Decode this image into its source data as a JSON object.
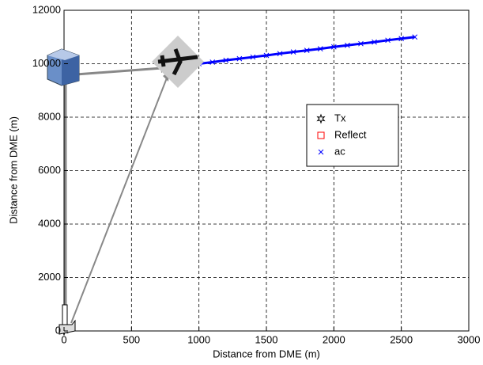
{
  "chart_data": {
    "type": "scatter",
    "xlabel": "Distance from DME (m)",
    "ylabel": "Distance from DME (m)",
    "xlim": [
      0,
      3000
    ],
    "ylim": [
      0,
      12000
    ],
    "xticks": [
      0,
      500,
      1000,
      1500,
      2000,
      2500,
      3000
    ],
    "yticks": [
      0,
      2000,
      4000,
      6000,
      8000,
      10000,
      12000
    ],
    "grid": true,
    "legend": "upper right",
    "series": [
      {
        "name": "Tx",
        "color": "#000000",
        "marker": "hexagram",
        "x": [
          0
        ],
        "y": [
          0
        ]
      },
      {
        "name": "Reflect",
        "color": "#ff0000",
        "marker": "square",
        "x": [
          0
        ],
        "y": [
          9500
        ]
      },
      {
        "name": "ac",
        "color": "#0000ff",
        "marker": "x",
        "x": [
          1000,
          1100,
          1200,
          1300,
          1400,
          1500,
          1600,
          1700,
          1800,
          1900,
          2000,
          2100,
          2200,
          2300,
          2400,
          2500,
          2600
        ],
        "y": [
          10000,
          10060,
          10130,
          10190,
          10250,
          10310,
          10380,
          10440,
          10500,
          10560,
          10630,
          10690,
          10750,
          10810,
          10880,
          10940,
          11000
        ]
      }
    ]
  }
}
